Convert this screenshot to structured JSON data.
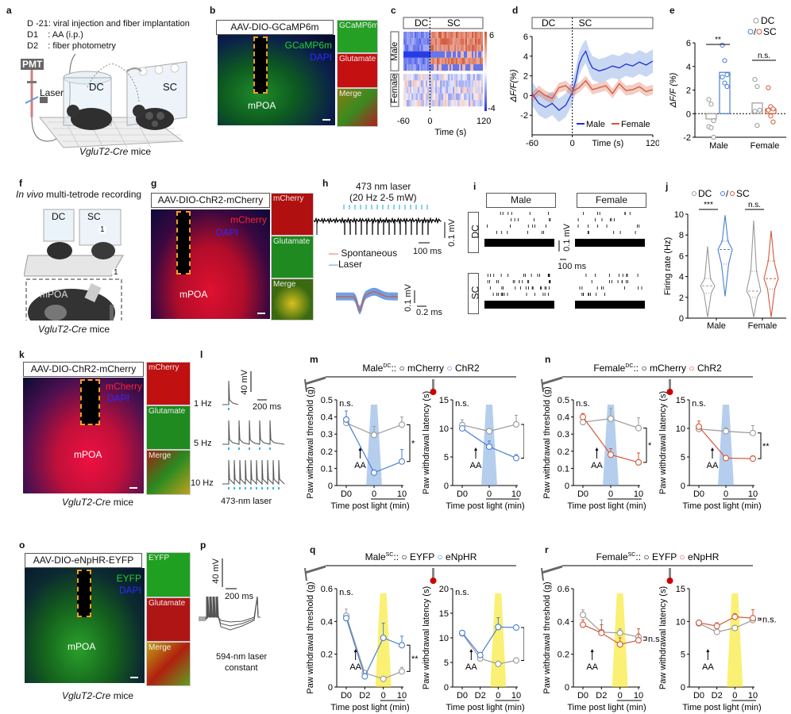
{
  "panels": {
    "a": {
      "label": "a",
      "timeline": [
        "D -21: viral injection and fiber implantation",
        "D1    : AA (i.p.)",
        "D2    : fiber photometry"
      ],
      "pmt": "PMT",
      "laser": "Laser",
      "dc": "DC",
      "sc": "SC",
      "mice_gene": "VgluT2-Cre",
      "mice_word": "mice"
    },
    "b": {
      "label": "b",
      "title": "AAV-DIO-GCaMP6m",
      "ch1": "GCaMP6m",
      "ch2": "DAPI",
      "region": "mPOA",
      "insets": [
        "GCaMP6m",
        "Glutamate",
        "Merge"
      ]
    },
    "c": {
      "label": "c",
      "header_dc": "DC",
      "header_sc": "SC",
      "row_male": "Male",
      "row_female": "Female",
      "cbar_max": "6",
      "cbar_min": "-4",
      "x_ticks": [
        "-60",
        "0",
        "120"
      ],
      "xlabel": "Time (s)"
    },
    "f": {
      "label": "f",
      "title_ital": "In vivo",
      "title_rest": " multi-tetrode recording",
      "dc": "DC",
      "sc": "SC",
      "region": "mPOA",
      "marker": "1",
      "mice_gene": "VgluT2-Cre",
      "mice_word": "mice"
    },
    "g": {
      "label": "g",
      "title": "AAV-DIO-ChR2-mCherry",
      "ch1": "mCherry",
      "ch2": "DAPI",
      "region": "mPOA",
      "insets": [
        "mCherry",
        "Glutamate",
        "Merge"
      ]
    },
    "h": {
      "label": "h",
      "laser_line1": "473 nm laser",
      "laser_line2": "(20 Hz  2-5 mW)",
      "scale_v": "0.1 mV",
      "scale_t": "100 ms",
      "legend": [
        "Spontaneous",
        "Laser"
      ],
      "wave_scale_v": "0.1 mV",
      "wave_scale_t": "0.2 ms"
    },
    "i": {
      "label": "i",
      "col_male": "Male",
      "col_female": "Female",
      "row_dc": "DC",
      "row_sc": "SC",
      "scale_v": "0.1 mV",
      "scale_t": "100 ms"
    },
    "k": {
      "label": "k",
      "title": "AAV-DIO-ChR2-mCherry",
      "ch1": "mCherry",
      "ch2": "DAPI",
      "region": "mPOA",
      "insets": [
        "mCherry",
        "Glutamate",
        "Merge"
      ],
      "mice_gene": "VgluT2-Cre",
      "mice_word": "mice"
    },
    "l": {
      "label": "l",
      "rows": [
        "1 Hz",
        "5 Hz",
        "10 Hz"
      ],
      "scale_v": "40 mV",
      "scale_t": "200 ms",
      "caption": "473-nm laser"
    },
    "o": {
      "label": "o",
      "title": "AAV-DIO-eNpHR-EYFP",
      "ch1": "EYFP",
      "ch2": "DAPI",
      "region": "mPOA",
      "insets": [
        "EYFP",
        "Glutamate",
        "Merge"
      ],
      "mice_gene": "VgluT2-Cre",
      "mice_word": "mice"
    },
    "p": {
      "label": "p",
      "scale_v": "40 mV",
      "scale_t": "200 ms",
      "caption1": "594-nm laser",
      "caption2": "constant"
    }
  },
  "colors": {
    "dc_gray": "#9a9a9a",
    "male_blue": "#4a7fd4",
    "female_red": "#d4583a",
    "line_blue": "#1f2fd6",
    "yellow": "#f5e400",
    "laser_cyan": "#3cb4e6"
  },
  "chart_data": [
    {
      "id": "d",
      "label": "d",
      "type": "line",
      "header_dc": "DC",
      "header_sc": "SC",
      "xlabel": "Time (s)",
      "ylabel": "ΔF/F(%)",
      "xlim": [
        -60,
        120
      ],
      "ylim": [
        -4,
        6
      ],
      "x_ticks": [
        "-60",
        "0",
        "120"
      ],
      "y_ticks": [
        "-2",
        "0",
        "2",
        "4",
        "6"
      ],
      "series": [
        {
          "name": "Male",
          "x": [
            -60,
            -50,
            -40,
            -30,
            -20,
            -10,
            0,
            5,
            10,
            15,
            20,
            25,
            30,
            40,
            50,
            60,
            70,
            80,
            90,
            100,
            110,
            120
          ],
          "y": [
            0.2,
            -0.8,
            -1.2,
            -0.8,
            -1.5,
            -1.0,
            0.3,
            1.5,
            3.2,
            4.0,
            4.5,
            3.5,
            2.8,
            2.5,
            2.7,
            3.0,
            2.8,
            3.2,
            3.0,
            3.4,
            3.1,
            3.5
          ]
        },
        {
          "name": "Female",
          "x": [
            -60,
            -50,
            -40,
            -30,
            -20,
            -10,
            0,
            10,
            20,
            30,
            40,
            50,
            60,
            70,
            80,
            90,
            100,
            110,
            120
          ],
          "y": [
            -0.2,
            0.5,
            0,
            -0.3,
            0.8,
            1.0,
            0.4,
            0.8,
            1.5,
            0.6,
            0.8,
            1.0,
            0.2,
            1.2,
            0.5,
            0.6,
            0.9,
            0.4,
            0.6
          ]
        }
      ],
      "legend": [
        "Male",
        "Female"
      ]
    },
    {
      "id": "e",
      "label": "e",
      "type": "bar",
      "ylabel": "ΔF/F (%)",
      "ylim": [
        -2,
        6
      ],
      "y_ticks": [
        "-2",
        "0",
        "2",
        "4",
        "6"
      ],
      "categories": [
        "Male",
        "Female"
      ],
      "legend": [
        "DC",
        "SC"
      ],
      "series": [
        {
          "name": "DC",
          "values": [
            -0.45,
            0.9
          ],
          "points": [
            [
              1.2,
              0.8,
              -0.6,
              -1.1,
              -1.2,
              -2.0
            ],
            [
              2.9,
              2.3,
              0.3,
              0.2,
              -1.0
            ]
          ]
        },
        {
          "name": "SC",
          "values": [
            3.5,
            0.4
          ],
          "points": [
            [
              5.8,
              4.5,
              3.3,
              3.1,
              2.6,
              2.3
            ],
            [
              2.2,
              0.6,
              0.4,
              0.3,
              -0.2,
              -0.7
            ]
          ]
        }
      ],
      "significance": [
        "**",
        "n.s."
      ]
    },
    {
      "id": "j",
      "label": "j",
      "type": "violin",
      "ylabel": "Firing rate (Hz)",
      "ylim": [
        0,
        10
      ],
      "y_ticks": [
        "0",
        "2",
        "4",
        "6",
        "8",
        "10"
      ],
      "categories": [
        "Male",
        "Female"
      ],
      "legend": [
        "DC",
        "SC"
      ],
      "series": [
        {
          "name": "DC",
          "median": [
            3.1,
            2.6
          ],
          "q1": [
            2.4,
            2.0
          ],
          "q3": [
            3.8,
            4.5
          ],
          "min": [
            0.1,
            0.1
          ],
          "max": [
            6.9,
            9.4
          ]
        },
        {
          "name": "SC",
          "median": [
            6.6,
            3.8
          ],
          "q1": [
            5.2,
            2.8
          ],
          "q3": [
            7.4,
            5.5
          ],
          "min": [
            2.1,
            0.1
          ],
          "max": [
            9.9,
            8.4
          ]
        }
      ],
      "significance": [
        "***",
        "n.s."
      ]
    },
    {
      "id": "m1",
      "label": "m",
      "type": "line",
      "header": "Male",
      "header_sup": "DC",
      "header_sep": "::",
      "legend": [
        "mCherry",
        "ChR2"
      ],
      "ylabel": "Paw withdrawal threshold (g)",
      "xlabel": "Time post light (min)",
      "ylim": [
        0,
        0.5
      ],
      "y_ticks": [
        "0",
        "0.1",
        "0.2",
        "0.3",
        "0.4",
        "0.5"
      ],
      "categories": [
        "D0",
        "0",
        "10"
      ],
      "series": [
        {
          "name": "mCherry",
          "values": [
            0.365,
            0.295,
            0.355
          ],
          "err": [
            0.015,
            0.05,
            0.045
          ]
        },
        {
          "name": "ChR2",
          "values": [
            0.385,
            0.075,
            0.14
          ],
          "err": [
            0.05,
            0.012,
            0.07
          ]
        }
      ],
      "annotations": {
        "ns": "n.s.",
        "arrow": "AA",
        "sig": "*"
      }
    },
    {
      "id": "m2",
      "label": "",
      "type": "line",
      "legend": [
        "mCherry",
        "ChR2"
      ],
      "ylabel": "Paw withdrawal latency (s)",
      "xlabel": "Time post light (min)",
      "ylim": [
        0,
        15
      ],
      "y_ticks": [
        "0",
        "5",
        "10",
        "15"
      ],
      "categories": [
        "D0",
        "0",
        "10"
      ],
      "series": [
        {
          "name": "mCherry",
          "values": [
            10.6,
            9.5,
            10.7
          ],
          "err": [
            0.9,
            0.3,
            1.6
          ]
        },
        {
          "name": "ChR2",
          "values": [
            10.0,
            6.8,
            4.8
          ],
          "err": [
            0.3,
            1.0,
            0.6
          ]
        }
      ],
      "annotations": {
        "ns": "n.s.",
        "arrow": "AA",
        "sig": "**"
      }
    },
    {
      "id": "n1",
      "label": "n",
      "type": "line",
      "header": "Female",
      "header_sup": "DC",
      "header_sep": "::",
      "legend": [
        "mCherry",
        "ChR2"
      ],
      "ylabel": "Paw withdrawal threshold (g)",
      "xlabel": "Time post light (min)",
      "ylim": [
        0,
        0.5
      ],
      "y_ticks": [
        "0",
        "0.1",
        "0.2",
        "0.3",
        "0.4",
        "0.5"
      ],
      "categories": [
        "D0",
        "0",
        "10"
      ],
      "series": [
        {
          "name": "mCherry",
          "values": [
            0.37,
            0.39,
            0.335
          ],
          "err": [
            0.01,
            0.06,
            0.06
          ]
        },
        {
          "name": "ChR2",
          "values": [
            0.4,
            0.18,
            0.135
          ],
          "err": [
            0.02,
            0.035,
            0.055
          ]
        }
      ],
      "annotations": {
        "ns": "n.s.",
        "arrow": "AA",
        "sig": "*"
      }
    },
    {
      "id": "n2",
      "label": "",
      "type": "line",
      "legend": [
        "mCherry",
        "ChR2"
      ],
      "ylabel": "Paw withdrawal latency (s)",
      "xlabel": "Time post light (min)",
      "ylim": [
        0,
        15
      ],
      "y_ticks": [
        "0",
        "5",
        "10",
        "15"
      ],
      "categories": [
        "D0",
        "0",
        "10"
      ],
      "series": [
        {
          "name": "mCherry",
          "values": [
            9.9,
            9.5,
            9.2
          ],
          "err": [
            0.3,
            0.6,
            1.3
          ]
        },
        {
          "name": "ChR2",
          "values": [
            10.3,
            4.8,
            4.7
          ],
          "err": [
            1.0,
            0.3,
            0.5
          ]
        }
      ],
      "annotations": {
        "ns": "n.s.",
        "arrow": "AA",
        "sig": "**"
      }
    },
    {
      "id": "q1",
      "label": "q",
      "type": "line",
      "header": "Male",
      "header_sup": "SC",
      "header_sep": "::",
      "legend": [
        "EYFP",
        "eNpHR"
      ],
      "ylabel": "Paw withdrawal threshold (g)",
      "xlabel": "Time post light (min)",
      "ylim": [
        0,
        0.6
      ],
      "y_ticks": [
        "0",
        "0.2",
        "0.4",
        "0.6"
      ],
      "categories": [
        "D0",
        "D2",
        "0",
        "10"
      ],
      "series": [
        {
          "name": "EYFP",
          "values": [
            0.435,
            0.085,
            0.05,
            0.095
          ],
          "err": [
            0.04,
            0.015,
            0.005,
            0.025
          ]
        },
        {
          "name": "eNpHR",
          "values": [
            0.42,
            0.065,
            0.3,
            0.255
          ],
          "err": [
            0.01,
            0.005,
            0.09,
            0.055
          ]
        }
      ],
      "annotations": {
        "ns": "n.s.",
        "arrow": "AA",
        "sig": "**"
      }
    },
    {
      "id": "q2",
      "label": "",
      "type": "line",
      "legend": [
        "EYFP",
        "eNpHR"
      ],
      "ylabel": "Paw withdrawal latency (s)",
      "xlabel": "Time post light (min)",
      "ylim": [
        0,
        20
      ],
      "y_ticks": [
        "0",
        "5",
        "10",
        "15",
        "20"
      ],
      "categories": [
        "D0",
        "D2",
        "0",
        "10"
      ],
      "series": [
        {
          "name": "EYFP",
          "values": [
            10.9,
            5.8,
            4.7,
            5.4
          ],
          "err": [
            0.5,
            0.5,
            0.5,
            0.5
          ]
        },
        {
          "name": "eNpHR",
          "values": [
            11.0,
            6.5,
            12.2,
            12.1
          ],
          "err": [
            0.3,
            0.5,
            1.9,
            0.2
          ]
        }
      ],
      "annotations": {
        "ns": "n.s.",
        "arrow": "AA",
        "sig": "**"
      }
    },
    {
      "id": "r1",
      "label": "r",
      "type": "line",
      "header": "Female",
      "header_sup": "SC",
      "header_sep": "::",
      "legend": [
        "EYFP",
        "eNpHR"
      ],
      "ylabel": "Paw withdrawal threshold (g)",
      "xlabel": "Time post light (min)",
      "ylim": [
        0,
        0.6
      ],
      "y_ticks": [
        "0",
        "0.2",
        "0.4",
        "0.6"
      ],
      "categories": [
        "D0",
        "D2",
        "0",
        "10"
      ],
      "series": [
        {
          "name": "EYFP",
          "values": [
            0.44,
            0.335,
            0.33,
            0.305
          ],
          "err": [
            0.03,
            0.075,
            0.025,
            0.02
          ]
        },
        {
          "name": "eNpHR",
          "values": [
            0.38,
            0.33,
            0.26,
            0.285
          ],
          "err": [
            0.03,
            0.05,
            0.04,
            0.07
          ]
        }
      ],
      "annotations": {
        "arrow": "AA",
        "sig": "n.s."
      }
    },
    {
      "id": "r2",
      "label": "",
      "type": "line",
      "legend": [
        "EYFP",
        "eNpHR"
      ],
      "ylabel": "Paw withdrawal latency (s)",
      "xlabel": "Time post light (min)",
      "ylim": [
        0,
        15
      ],
      "y_ticks": [
        "0",
        "5",
        "10",
        "15"
      ],
      "categories": [
        "D0",
        "D2",
        "0",
        "10"
      ],
      "series": [
        {
          "name": "EYFP",
          "values": [
            9.7,
            8.4,
            9.0,
            10.2
          ],
          "err": [
            0.3,
            0.2,
            0.2,
            0.3
          ]
        },
        {
          "name": "eNpHR",
          "values": [
            9.8,
            9.3,
            10.7,
            10.5
          ],
          "err": [
            0.2,
            0.5,
            0.5,
            1.3
          ]
        }
      ],
      "annotations": {
        "arrow": "AA",
        "sig": "n.s."
      }
    }
  ]
}
